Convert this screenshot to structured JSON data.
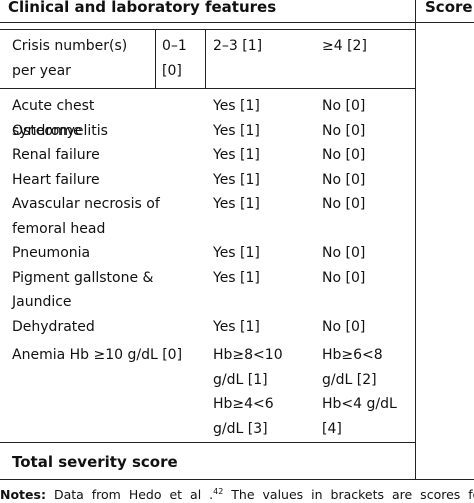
{
  "header": {
    "title": "Clinical and laboratory features",
    "score": "Score"
  },
  "crisis": {
    "label": "Crisis number(s) per year",
    "c1": "0–1 [0]",
    "c2": "2–3 [1]",
    "c3": "≥4 [2]"
  },
  "features": [
    [
      "Acute chest syndrome",
      "Yes [1]",
      "No [0]"
    ],
    [
      "Osteomyelitis",
      "Yes [1]",
      "No [0]"
    ],
    [
      "Renal failure",
      "Yes [1]",
      "No [0]"
    ],
    [
      "Heart failure",
      "Yes [1]",
      "No [0]"
    ],
    [
      "Avascular necrosis of femoral head",
      "Yes [1]",
      "No [0]"
    ],
    [
      "Pneumonia",
      "Yes [1]",
      "No [0]"
    ],
    [
      "Pigment gallstone & Jaundice",
      "Yes [1]",
      "No [0]"
    ],
    [
      "Dehydrated",
      "Yes [1]",
      "No [0]"
    ]
  ],
  "anemia": {
    "label": "Anemia Hb ≥10 g/dL [0]",
    "levels": [
      "Hb≥8<10 g/dL [1]",
      "Hb≥6<8 g/dL [2]",
      "Hb≥4<6 g/dL [3]",
      "Hb<4 g/dL [4]"
    ]
  },
  "total": "Total severity score",
  "notes": {
    "label": "Notes:",
    "text": "Data from Hedo et al .",
    "ref": "42",
    "rest": "The values in brackets are scores for ea"
  }
}
